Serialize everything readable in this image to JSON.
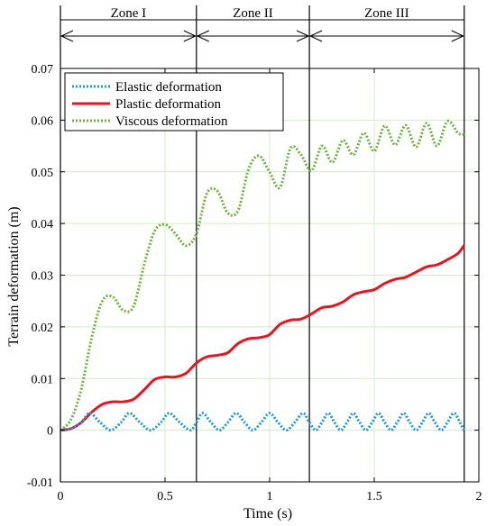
{
  "chart_data": {
    "type": "line",
    "xlabel": "Time (s)",
    "ylabel": "Terrain deformation (m)",
    "xlim": [
      0,
      2
    ],
    "ylim": [
      -0.01,
      0.07
    ],
    "xticks": [
      "0",
      "0.5",
      "1",
      "1.5",
      "2"
    ],
    "yticks": [
      "-0.01",
      "0",
      "0.01",
      "0.02",
      "0.03",
      "0.04",
      "0.05",
      "0.06",
      "0.07"
    ],
    "grid": true,
    "legend_position": "top-left",
    "zones": [
      {
        "label": "Zone I",
        "start": 0,
        "end": 0.65
      },
      {
        "label": "Zone II",
        "start": 0.65,
        "end": 1.19
      },
      {
        "label": "Zone III",
        "start": 1.19,
        "end": 1.93
      }
    ],
    "series": [
      {
        "name": "Elastic deformation",
        "color": "#1e9bd7",
        "style": "dotted",
        "x": [
          0,
          0.05,
          0.1,
          0.14,
          0.19,
          0.24,
          0.29,
          0.33,
          0.38,
          0.43,
          0.48,
          0.52,
          0.57,
          0.62,
          0.65,
          0.68,
          0.72,
          0.76,
          0.8,
          0.84,
          0.88,
          0.92,
          0.96,
          1.0,
          1.04,
          1.08,
          1.12,
          1.16,
          1.19,
          1.22,
          1.25,
          1.28,
          1.31,
          1.34,
          1.37,
          1.4,
          1.43,
          1.46,
          1.49,
          1.52,
          1.55,
          1.58,
          1.61,
          1.64,
          1.67,
          1.7,
          1.73,
          1.76,
          1.79,
          1.82,
          1.85,
          1.88,
          1.91,
          1.93
        ],
        "values": [
          0,
          0.0003,
          0.0015,
          0.0033,
          0.0015,
          0.0,
          0.0015,
          0.0033,
          0.0015,
          0.0,
          0.0015,
          0.0033,
          0.0015,
          0.0,
          0.0015,
          0.0033,
          0.0015,
          0.0,
          0.0015,
          0.0033,
          0.0015,
          0.0,
          0.0015,
          0.0033,
          0.0015,
          0.0,
          0.0015,
          0.0033,
          0.0015,
          0.0,
          0.0015,
          0.0033,
          0.0015,
          0.0,
          0.0015,
          0.0033,
          0.0015,
          0.0,
          0.0015,
          0.0033,
          0.0015,
          0.0,
          0.0015,
          0.0033,
          0.0015,
          0.0,
          0.0015,
          0.0033,
          0.0015,
          0.0,
          0.0015,
          0.0033,
          0.0015,
          -0.0002
        ]
      },
      {
        "name": "Plastic deformation",
        "color": "#e8141e",
        "style": "solid",
        "x": [
          0,
          0.05,
          0.1,
          0.15,
          0.2,
          0.25,
          0.3,
          0.35,
          0.4,
          0.45,
          0.5,
          0.55,
          0.6,
          0.65,
          0.7,
          0.75,
          0.8,
          0.85,
          0.9,
          0.95,
          1.0,
          1.05,
          1.1,
          1.15,
          1.2,
          1.25,
          1.3,
          1.35,
          1.4,
          1.45,
          1.5,
          1.55,
          1.6,
          1.65,
          1.7,
          1.75,
          1.8,
          1.85,
          1.9,
          1.93
        ],
        "values": [
          0,
          0.0003,
          0.0015,
          0.0035,
          0.005,
          0.0055,
          0.0055,
          0.006,
          0.0078,
          0.0098,
          0.0103,
          0.0103,
          0.011,
          0.013,
          0.0142,
          0.0145,
          0.015,
          0.0168,
          0.0177,
          0.0179,
          0.0185,
          0.0205,
          0.0213,
          0.0215,
          0.0225,
          0.0237,
          0.024,
          0.0248,
          0.0262,
          0.0268,
          0.0272,
          0.0284,
          0.0292,
          0.0296,
          0.0306,
          0.0316,
          0.032,
          0.033,
          0.0342,
          0.0358
        ]
      },
      {
        "name": "Viscous deformation",
        "color": "#6cb43c",
        "style": "dotted",
        "x": [
          0,
          0.05,
          0.1,
          0.15,
          0.2,
          0.25,
          0.3,
          0.35,
          0.4,
          0.45,
          0.5,
          0.55,
          0.6,
          0.65,
          0.7,
          0.75,
          0.8,
          0.85,
          0.9,
          0.95,
          1.0,
          1.05,
          1.1,
          1.15,
          1.2,
          1.25,
          1.3,
          1.35,
          1.4,
          1.45,
          1.5,
          1.55,
          1.6,
          1.65,
          1.7,
          1.75,
          1.8,
          1.85,
          1.9,
          1.93
        ],
        "values": [
          0,
          0.002,
          0.008,
          0.018,
          0.025,
          0.0258,
          0.0232,
          0.024,
          0.032,
          0.0385,
          0.0398,
          0.038,
          0.0357,
          0.038,
          0.0458,
          0.0463,
          0.042,
          0.0426,
          0.0506,
          0.0531,
          0.0499,
          0.047,
          0.0546,
          0.0533,
          0.0502,
          0.055,
          0.0518,
          0.0561,
          0.0533,
          0.0575,
          0.054,
          0.0589,
          0.0552,
          0.059,
          0.0548,
          0.0594,
          0.055,
          0.0598,
          0.0575,
          0.0572
        ]
      }
    ]
  }
}
